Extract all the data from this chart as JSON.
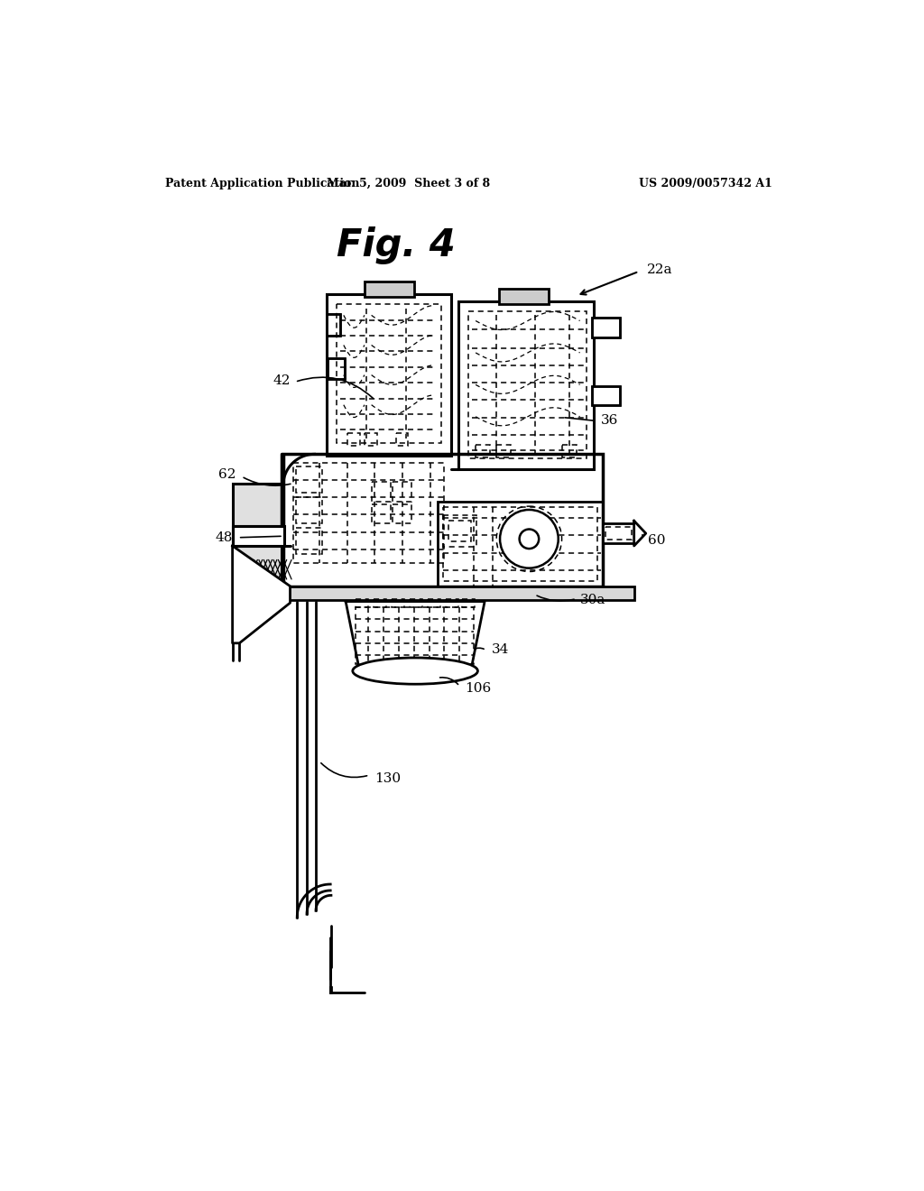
{
  "bg_color": "#ffffff",
  "header_left": "Patent Application Publication",
  "header_center": "Mar. 5, 2009  Sheet 3 of 8",
  "header_right": "US 2009/0057342 A1",
  "fig_title": "Fig. 4",
  "lw_main": 1.8,
  "lw_thick": 2.5,
  "lw_thin": 1.0,
  "lw_dash": 1.1,
  "dash": [
    4,
    3
  ]
}
